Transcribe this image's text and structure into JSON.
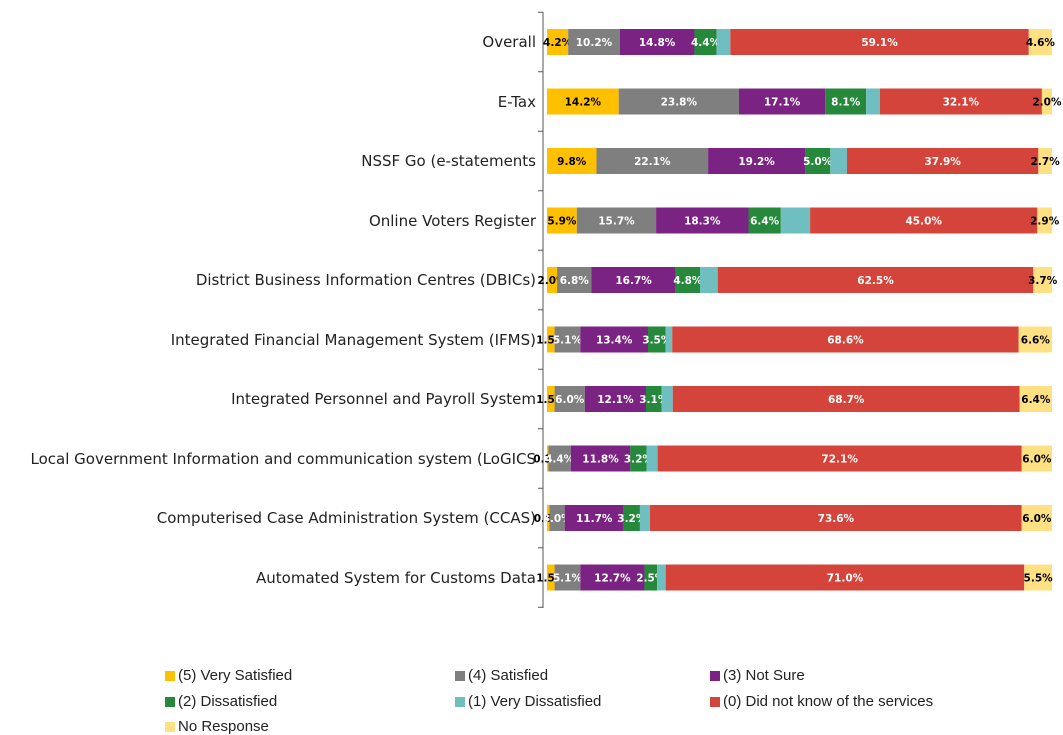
{
  "chart_data": {
    "type": "stacked-bar-horizontal",
    "categories": [
      "Overall",
      "E-Tax",
      "NSSF Go (e-statements",
      "Online Voters Register",
      "District Business Information Centres (DBICs)",
      "Integrated Financial Management System (IFMS)",
      "Integrated Personnel and Payroll System",
      "Local Government Information and communication system (LoGICS",
      "Computerised Case Administration System (CCAS)",
      "Automated System for Customs Data"
    ],
    "xlim": [
      0,
      100
    ],
    "legend": "bottom",
    "series": [
      {
        "name": "(5) Very Satisfied",
        "color": "#ffc000",
        "label_color": "#000000",
        "values": [
          4.2,
          14.2,
          9.8,
          5.9,
          2.0,
          1.5,
          1.5,
          0.3,
          0.5,
          1.5
        ],
        "value_labels": [
          "4.2%",
          "14.2%",
          "9.8%",
          "5.9%",
          "2.0%",
          "1.5%",
          "1.5%",
          "0.3%",
          "0.5%",
          "1.5%"
        ]
      },
      {
        "name": "(4) Satisfied",
        "color": "#7f7f7f",
        "label_color": "#ffffff",
        "values": [
          10.2,
          23.8,
          22.1,
          15.7,
          6.8,
          5.1,
          6.0,
          4.4,
          3.0,
          5.1
        ],
        "value_labels": [
          "10.2%",
          "23.8%",
          "22.1%",
          "15.7%",
          "6.8%",
          "5.1%",
          "6.0%",
          "4.4%",
          "3.0%",
          "5.1%"
        ]
      },
      {
        "name": "(3) Not Sure",
        "color": "#7b2382",
        "label_color": "#ffffff",
        "values": [
          14.8,
          17.1,
          19.2,
          18.3,
          16.7,
          13.4,
          12.1,
          11.8,
          11.7,
          12.7
        ],
        "value_labels": [
          "14.8%",
          "17.1%",
          "19.2%",
          "18.3%",
          "16.7%",
          "13.4%",
          "12.1%",
          "11.8%",
          "11.7%",
          "12.7%"
        ]
      },
      {
        "name": "(2) Dissatisfied",
        "color": "#25883a",
        "label_color": "#ffffff",
        "values": [
          4.4,
          8.1,
          5.0,
          6.4,
          4.8,
          3.5,
          3.1,
          3.2,
          3.2,
          2.5
        ],
        "value_labels": [
          "4.4%",
          "8.1%",
          "5.0%",
          "6.4%",
          "4.8%",
          "3.5%",
          "3.1%",
          "3.2%",
          "3.2%",
          "2.5%"
        ]
      },
      {
        "name": "(1) Very Dissatisfied",
        "color": "#6fbfc0",
        "label_color": "#ffffff",
        "values": [
          2.7,
          2.7,
          3.3,
          5.8,
          3.5,
          1.3,
          2.2,
          2.2,
          2.0,
          1.7
        ]
      },
      {
        "name": "(0) Did not know of the services",
        "color": "#d5443a",
        "label_color": "#ffffff",
        "values": [
          59.1,
          32.1,
          37.9,
          45.0,
          62.5,
          68.6,
          68.7,
          72.1,
          73.6,
          71.0
        ],
        "value_labels": [
          "59.1%",
          "32.1%",
          "37.9%",
          "45.0%",
          "62.5%",
          "68.6%",
          "68.7%",
          "72.1%",
          "73.6%",
          "71.0%"
        ]
      },
      {
        "name": "No Response",
        "color": "#ffe083",
        "label_color": "#000000",
        "values": [
          4.6,
          2.0,
          2.7,
          2.9,
          3.7,
          6.6,
          6.4,
          6.0,
          6.0,
          5.5
        ],
        "value_labels": [
          "4.6%",
          "2.0%",
          "2.7%",
          "2.9%",
          "3.7%",
          "6.6%",
          "6.4%",
          "6.0%",
          "6.0%",
          "5.5%"
        ]
      }
    ]
  }
}
